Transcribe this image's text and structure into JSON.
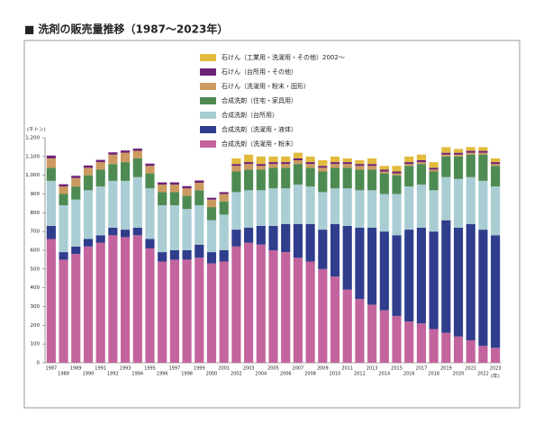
{
  "chart_data": {
    "type": "stacked_bar",
    "title": "■ 洗剤の販売量推移（1987～2023年）",
    "y_label": "(千トン)",
    "x_label": "(年)",
    "categories": [
      "1987",
      "1988",
      "1989",
      "1990",
      "1991",
      "1992",
      "1993",
      "1994",
      "1995",
      "1996",
      "1997",
      "1998",
      "1999",
      "2000",
      "2001",
      "2002",
      "2003",
      "2004",
      "2005",
      "2006",
      "2007",
      "2008",
      "2009",
      "2010",
      "2011",
      "2012",
      "2013",
      "2014",
      "2015",
      "2016",
      "2017",
      "2018",
      "2019",
      "2020",
      "2021",
      "2022",
      "2023"
    ],
    "ylim": [
      0,
      1200
    ],
    "yticks": [
      0,
      100,
      200,
      300,
      400,
      500,
      600,
      700,
      800,
      900,
      {
        "value": 1000,
        "label": "1,000"
      },
      {
        "value": 1100,
        "label": "1,100"
      },
      {
        "value": 1200,
        "label": "1,200"
      }
    ],
    "series": [
      {
        "name": "合成洗剤（洗濯用・粉末）",
        "color": "#c4649e",
        "values": [
          660,
          550,
          580,
          620,
          640,
          680,
          670,
          680,
          610,
          540,
          550,
          550,
          560,
          530,
          540,
          620,
          640,
          630,
          600,
          590,
          560,
          540,
          500,
          460,
          390,
          340,
          310,
          280,
          250,
          220,
          210,
          180,
          160,
          140,
          120,
          90,
          80
        ]
      },
      {
        "name": "合成洗剤（洗濯用・液体）",
        "color": "#2f3d8c",
        "values": [
          70,
          40,
          40,
          40,
          40,
          40,
          40,
          40,
          50,
          50,
          50,
          50,
          70,
          60,
          60,
          90,
          80,
          100,
          130,
          150,
          180,
          200,
          210,
          280,
          340,
          380,
          410,
          420,
          430,
          490,
          510,
          520,
          600,
          580,
          620,
          620,
          600
        ]
      },
      {
        "name": "合成洗剤（台所用）",
        "color": "#aacdd4",
        "values": [
          240,
          250,
          250,
          260,
          260,
          250,
          260,
          270,
          270,
          250,
          240,
          220,
          210,
          170,
          190,
          200,
          200,
          190,
          200,
          190,
          210,
          200,
          200,
          190,
          200,
          200,
          200,
          200,
          220,
          230,
          230,
          220,
          230,
          260,
          250,
          260,
          260
        ]
      },
      {
        "name": "合成洗剤（住宅・家具用）",
        "color": "#4e8b53",
        "values": [
          70,
          60,
          70,
          80,
          90,
          90,
          100,
          100,
          80,
          70,
          70,
          70,
          80,
          70,
          70,
          110,
          110,
          110,
          110,
          110,
          110,
          100,
          110,
          110,
          110,
          110,
          110,
          110,
          100,
          110,
          110,
          100,
          110,
          120,
          120,
          140,
          110
        ]
      },
      {
        "name": "石けん（洗濯用・粉末・固形）",
        "color": "#cc9a60",
        "values": [
          50,
          40,
          45,
          40,
          40,
          50,
          50,
          40,
          40,
          40,
          40,
          40,
          40,
          40,
          40,
          30,
          30,
          20,
          20,
          20,
          20,
          20,
          20,
          20,
          20,
          20,
          20,
          10,
          10,
          10,
          10,
          10,
          10,
          10,
          10,
          10,
          10
        ]
      },
      {
        "name": "石けん（台所用・その他）",
        "color": "#6c2275",
        "values": [
          15,
          12,
          12,
          12,
          12,
          12,
          12,
          12,
          12,
          12,
          12,
          12,
          12,
          10,
          10,
          10,
          10,
          10,
          10,
          10,
          10,
          10,
          10,
          10,
          10,
          10,
          10,
          10,
          10,
          10,
          10,
          10,
          10,
          10,
          10,
          10,
          10
        ]
      },
      {
        "name": "石けん（工業用・洗濯用・その他）2002～",
        "color": "#e2bb3e",
        "values": [
          null,
          null,
          null,
          null,
          null,
          null,
          null,
          null,
          null,
          null,
          null,
          null,
          null,
          null,
          null,
          30,
          40,
          40,
          30,
          30,
          30,
          30,
          30,
          30,
          20,
          20,
          30,
          20,
          30,
          30,
          30,
          30,
          30,
          20,
          20,
          20,
          20
        ]
      }
    ]
  }
}
